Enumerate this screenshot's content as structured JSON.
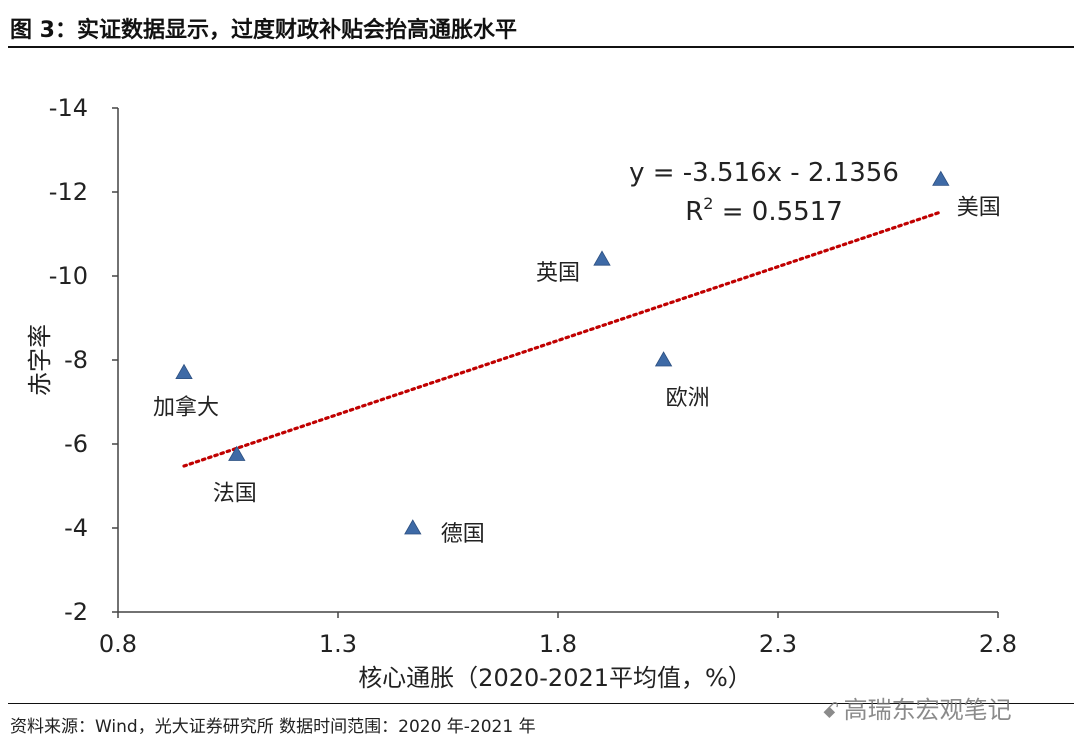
{
  "header": {
    "title": "图 3：实证数据显示，过度财政补贴会抬高通胀水平"
  },
  "footer": {
    "source": "资料来源：Wind，光大证券研究所  数据时间范围：2020 年-2021 年"
  },
  "watermark": {
    "text": "高瑞东宏观笔记",
    "icon": "wechat-icon"
  },
  "chart_data": {
    "type": "scatter",
    "xlabel": "核心通胀（2020-2021平均值，%）",
    "ylabel": "赤字率",
    "xlim": [
      0.8,
      2.8
    ],
    "ylim": [
      -14,
      -2
    ],
    "y_inverted": true,
    "x_ticks": [
      "0.8",
      "1.3",
      "1.8",
      "2.3",
      "2.8"
    ],
    "y_ticks": [
      "-14",
      "-12",
      "-10",
      "-8",
      "-6",
      "-4",
      "-2"
    ],
    "x_tick_values": [
      0.8,
      1.3,
      1.8,
      2.3,
      2.8
    ],
    "y_tick_values": [
      -14,
      -12,
      -10,
      -8,
      -6,
      -4,
      -2
    ],
    "points": [
      {
        "label": "加拿大",
        "x": 0.95,
        "y": -7.7
      },
      {
        "label": "法国",
        "x": 1.07,
        "y": -5.75
      },
      {
        "label": "德国",
        "x": 1.47,
        "y": -4.0
      },
      {
        "label": "英国",
        "x": 1.9,
        "y": -10.4
      },
      {
        "label": "欧洲",
        "x": 2.04,
        "y": -8.0
      },
      {
        "label": "美国",
        "x": 2.67,
        "y": -12.3
      }
    ],
    "trendline": {
      "style": "dotted",
      "x_range": [
        0.95,
        2.67
      ],
      "slope": -3.516,
      "intercept": -2.1356,
      "equation": "y = -3.516x - 2.1356",
      "r2_label": "R",
      "r2_sup": "2",
      "r2_value": " = 0.5517"
    },
    "marker_color": "#3e6aa6",
    "trend_color": "#c00000",
    "grid": false
  }
}
